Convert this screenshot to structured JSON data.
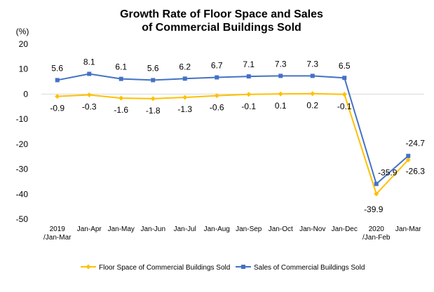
{
  "chart_data": {
    "type": "line",
    "title_line1": "Growth Rate of Floor Space and Sales",
    "title_line2": "of Commercial Buildings Sold",
    "ylabel": "(%)",
    "ylim": [
      -50,
      20
    ],
    "yticks": [
      20,
      10,
      0,
      -10,
      -20,
      -30,
      -40,
      -50
    ],
    "grid": false,
    "legend_position": "bottom",
    "categories": [
      [
        "2019",
        "/Jan-Mar"
      ],
      [
        "Jan-Apr"
      ],
      [
        "Jan-May"
      ],
      [
        "Jan-Jun"
      ],
      [
        "Jan-Jul"
      ],
      [
        "Jan-Aug"
      ],
      [
        "Jan-Sep"
      ],
      [
        "Jan-Oct"
      ],
      [
        "Jan-Nov"
      ],
      [
        "Jan-Dec"
      ],
      [
        "2020",
        "/Jan-Feb"
      ],
      [
        "Jan-Mar"
      ]
    ],
    "series": [
      {
        "name": "Floor Space of Commercial Buildings Sold",
        "color": "#FFC000",
        "marker": "diamond",
        "values": [
          -0.9,
          -0.3,
          -1.6,
          -1.8,
          -1.3,
          -0.6,
          -0.1,
          0.1,
          0.2,
          -0.1,
          -39.9,
          -26.3
        ],
        "labels": [
          "-0.9",
          "-0.3",
          "-1.6",
          "-1.8",
          "-1.3",
          "-0.6",
          "-0.1",
          "0.1",
          "0.2",
          "-0.1",
          "-39.9",
          "-26.3"
        ]
      },
      {
        "name": "Sales of Commercial Buildings Sold",
        "color": "#4472C4",
        "marker": "square",
        "values": [
          5.6,
          8.1,
          6.1,
          5.6,
          6.2,
          6.7,
          7.1,
          7.3,
          7.3,
          6.5,
          -35.9,
          -24.7
        ],
        "labels": [
          "5.6",
          "8.1",
          "6.1",
          "5.6",
          "6.2",
          "6.7",
          "7.1",
          "7.3",
          "7.3",
          "6.5",
          "-35.9",
          "-24.7"
        ]
      }
    ]
  }
}
